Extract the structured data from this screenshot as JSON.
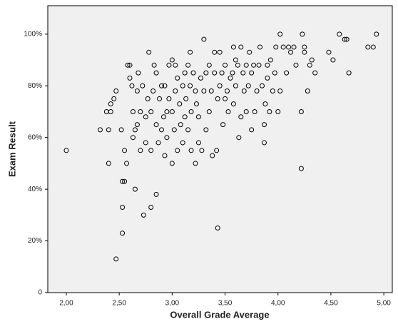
{
  "chart_data": {
    "type": "scatter",
    "x_label": "Overall Grade Average",
    "y_label": "Exam Result",
    "color": "#000000",
    "background": "#f0f0f0",
    "xlim": [
      1.825,
      5.08
    ],
    "ylim": [
      0,
      111
    ],
    "xticks": [
      {
        "value": 2,
        "label": "2,00"
      },
      {
        "value": 2.5,
        "label": "2,50"
      },
      {
        "value": 3,
        "label": "3,00"
      },
      {
        "value": 3.5,
        "label": "3,50"
      },
      {
        "value": 4,
        "label": "4,00"
      },
      {
        "value": 4.5,
        "label": "4,50"
      },
      {
        "value": 5,
        "label": "5,00"
      }
    ],
    "yticks": [
      0,
      {
        "value": 20,
        "label": "20%"
      },
      {
        "value": 40,
        "label": "40%"
      },
      {
        "value": 60,
        "label": "60%"
      },
      {
        "value": 80,
        "label": "80%"
      },
      {
        "value": 100,
        "label": "100%"
      }
    ],
    "x": [
      2.0,
      2.32,
      2.38,
      2.4,
      2.4,
      2.42,
      2.45,
      2.47,
      2.47,
      2.42,
      2.52,
      2.53,
      2.55,
      2.53,
      2.53,
      2.55,
      2.57,
      2.58,
      2.6,
      2.6,
      2.62,
      2.63,
      2.63,
      2.65,
      2.65,
      2.67,
      2.67,
      2.68,
      2.7,
      2.7,
      2.72,
      2.73,
      2.75,
      2.75,
      2.77,
      2.78,
      2.8,
      2.8,
      2.8,
      2.82,
      2.83,
      2.85,
      2.85,
      2.85,
      2.87,
      2.88,
      2.9,
      2.9,
      2.92,
      2.93,
      2.93,
      2.95,
      2.95,
      2.97,
      2.97,
      3.0,
      3.0,
      3.0,
      3.02,
      3.03,
      3.03,
      3.05,
      3.05,
      3.07,
      3.08,
      3.1,
      3.1,
      3.12,
      3.12,
      3.13,
      3.15,
      3.15,
      3.17,
      3.17,
      3.18,
      3.18,
      3.2,
      3.22,
      3.22,
      3.23,
      3.25,
      3.25,
      3.27,
      3.28,
      3.3,
      3.3,
      3.32,
      3.32,
      3.35,
      3.35,
      3.37,
      3.38,
      3.4,
      3.4,
      3.42,
      3.43,
      3.43,
      3.45,
      3.45,
      3.47,
      3.48,
      3.5,
      3.5,
      3.52,
      3.53,
      3.55,
      3.57,
      3.58,
      3.58,
      3.6,
      3.6,
      3.62,
      3.63,
      3.65,
      3.65,
      3.67,
      3.68,
      3.7,
      3.7,
      3.72,
      3.73,
      3.75,
      3.75,
      3.77,
      3.78,
      3.8,
      3.82,
      3.83,
      3.85,
      3.87,
      3.87,
      3.88,
      3.9,
      3.9,
      3.92,
      3.93,
      3.95,
      3.97,
      3.98,
      4.0,
      4.02,
      4.02,
      4.05,
      4.08,
      4.1,
      4.12,
      4.15,
      4.17,
      4.22,
      4.22,
      4.23,
      4.25,
      4.25,
      4.28,
      4.3,
      4.32,
      4.35,
      4.48,
      4.52,
      4.58,
      4.63,
      4.65,
      4.67,
      4.85,
      4.9,
      4.93
    ],
    "values": [
      55,
      63,
      70,
      63,
      50,
      73,
      75,
      78,
      13,
      70,
      63,
      43,
      43,
      33,
      23,
      55,
      50,
      88,
      88,
      83,
      80,
      70,
      60,
      40,
      63,
      65,
      78,
      85,
      70,
      55,
      80,
      30,
      58,
      68,
      75,
      93,
      33,
      55,
      70,
      78,
      88,
      38,
      85,
      65,
      58,
      75,
      80,
      63,
      68,
      53,
      80,
      60,
      70,
      88,
      75,
      70,
      50,
      90,
      63,
      78,
      88,
      83,
      55,
      73,
      65,
      80,
      58,
      68,
      85,
      75,
      63,
      88,
      93,
      80,
      70,
      55,
      85,
      78,
      50,
      73,
      68,
      58,
      83,
      55,
      78,
      98,
      63,
      85,
      70,
      88,
      78,
      53,
      93,
      85,
      55,
      25,
      75,
      93,
      80,
      85,
      65,
      75,
      88,
      78,
      70,
      83,
      85,
      95,
      73,
      80,
      90,
      88,
      60,
      95,
      68,
      85,
      78,
      70,
      88,
      80,
      93,
      85,
      63,
      88,
      70,
      78,
      88,
      95,
      80,
      58,
      65,
      73,
      88,
      83,
      70,
      90,
      78,
      85,
      95,
      70,
      100,
      78,
      95,
      85,
      95,
      93,
      95,
      88,
      48,
      70,
      100,
      95,
      93,
      78,
      88,
      90,
      85,
      93,
      90,
      100,
      98,
      98,
      85,
      95,
      95,
      100
    ]
  }
}
